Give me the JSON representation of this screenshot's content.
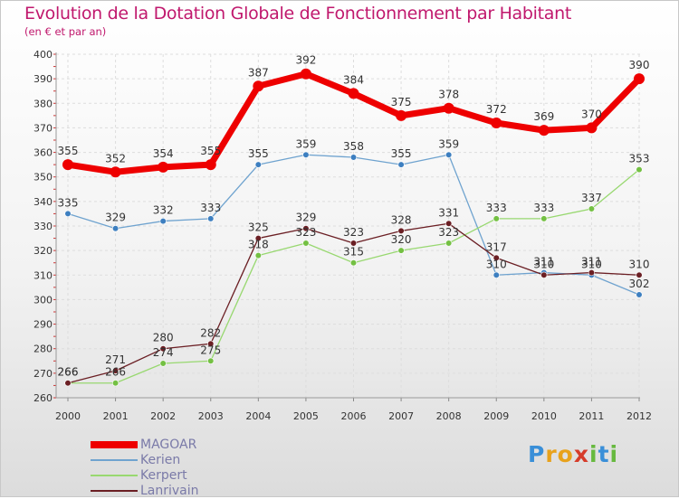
{
  "title": "Evolution de la Dotation Globale de Fonctionnement par Habitant",
  "subtitle": "(en € et par an)",
  "brand": {
    "letters": [
      "P",
      "r",
      "o",
      "x",
      "i",
      "t",
      "i"
    ],
    "colors": [
      "#3a8fd8",
      "#e8a21c",
      "#e8a21c",
      "#d63c2a",
      "#67b93f",
      "#3a8fd8",
      "#67b93f"
    ]
  },
  "chart_data": {
    "type": "line",
    "title": "Evolution de la Dotation Globale de Fonctionnement par Habitant",
    "subtitle": "(en € et par an)",
    "x": [
      "2000",
      "2001",
      "2002",
      "2003",
      "2004",
      "2005",
      "2006",
      "2007",
      "2008",
      "2009",
      "2010",
      "2011",
      "2012"
    ],
    "ylim": [
      260,
      400
    ],
    "yticks": [
      260,
      270,
      280,
      290,
      300,
      310,
      320,
      330,
      340,
      350,
      360,
      370,
      380,
      390,
      400
    ],
    "grid": true,
    "legend_position": "bottom-left",
    "series": [
      {
        "name": "MAGOAR",
        "values": [
          355,
          352,
          354,
          355,
          387,
          392,
          384,
          375,
          378,
          372,
          369,
          370,
          390
        ],
        "color": "#ee0000",
        "marker": "#ee0000",
        "emphasis": true
      },
      {
        "name": "Kerien",
        "values": [
          335,
          329,
          332,
          333,
          355,
          359,
          358,
          355,
          359,
          310,
          311,
          310,
          302
        ],
        "color": "#6fa3cf",
        "marker": "#3d7fc0"
      },
      {
        "name": "Kerpert",
        "values": [
          266,
          266,
          274,
          275,
          318,
          323,
          315,
          320,
          323,
          333,
          333,
          337,
          353
        ],
        "color": "#98d870",
        "marker": "#74c043"
      },
      {
        "name": "Lanrivain",
        "values": [
          266,
          271,
          280,
          282,
          325,
          329,
          323,
          328,
          331,
          317,
          310,
          311,
          310
        ],
        "color": "#6b1f24",
        "marker": "#6b1f24"
      }
    ]
  }
}
